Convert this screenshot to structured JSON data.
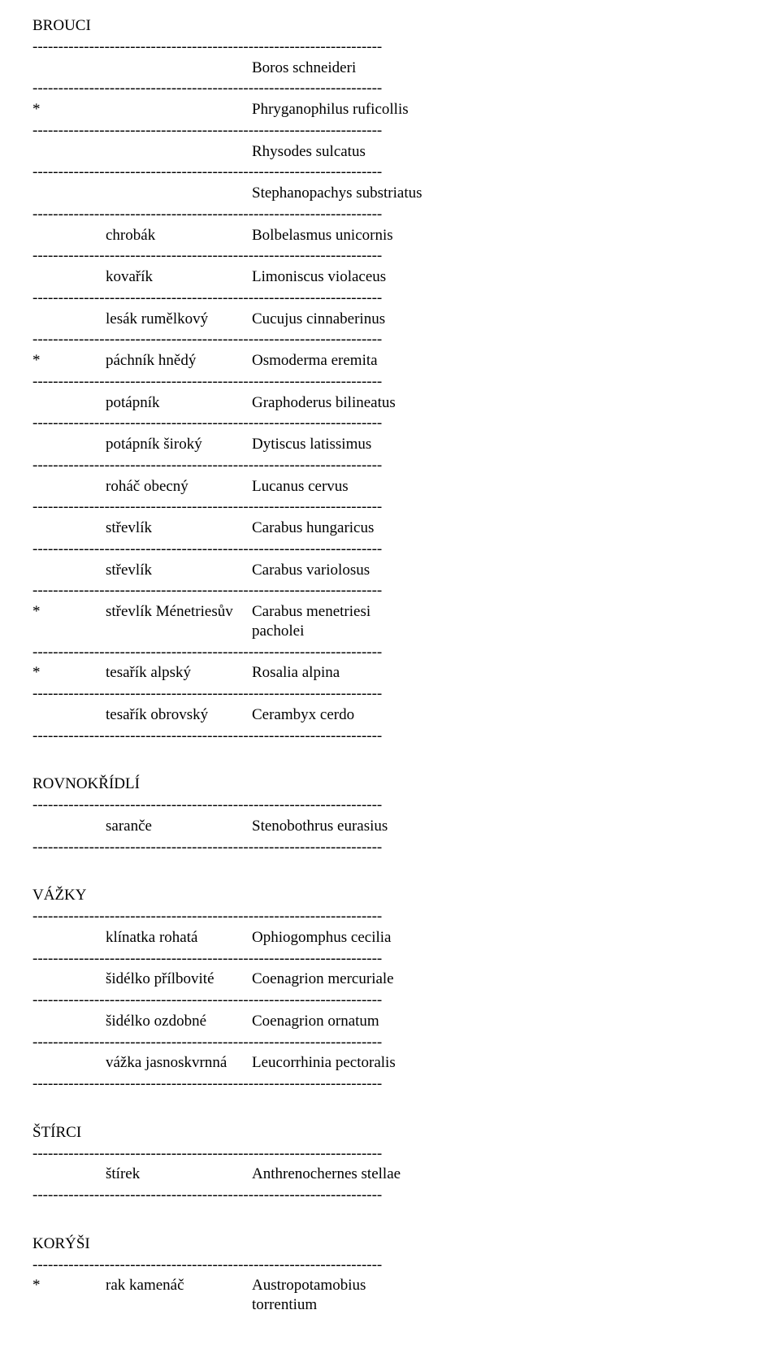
{
  "separator": "--------------------------------------------------------------------",
  "sections": {
    "brouci": {
      "title": "BROUCI",
      "items": [
        {
          "star": "",
          "common": "",
          "latin": "Boros schneideri"
        },
        {
          "star": "*",
          "common": "",
          "latin": "Phryganophilus ruficollis"
        },
        {
          "star": "",
          "common": "",
          "latin": "Rhysodes sulcatus"
        },
        {
          "star": "",
          "common": "",
          "latin": "Stephanopachys substriatus"
        },
        {
          "star": "",
          "common": "chrobák",
          "latin": "Bolbelasmus unicornis"
        },
        {
          "star": "",
          "common": "kovařík",
          "latin": "Limoniscus violaceus"
        },
        {
          "star": "",
          "common": "lesák rumělkový",
          "latin": "Cucujus cinnaberinus"
        },
        {
          "star": "*",
          "common": "páchník hnědý",
          "latin": "Osmoderma eremita"
        },
        {
          "star": "",
          "common": "potápník",
          "latin": "Graphoderus bilineatus"
        },
        {
          "star": "",
          "common": "potápník široký",
          "latin": "Dytiscus latissimus"
        },
        {
          "star": "",
          "common": "roháč obecný",
          "latin": "Lucanus cervus"
        },
        {
          "star": "",
          "common": "střevlík",
          "latin": "Carabus hungaricus"
        },
        {
          "star": "",
          "common": "střevlík",
          "latin": "Carabus variolosus"
        },
        {
          "star": "*",
          "common": "střevlík Ménetriesův",
          "latin": "Carabus menetriesi",
          "common2": "",
          "latin2": "pacholei"
        },
        {
          "star": "*",
          "common": "tesařík alpský",
          "latin": "Rosalia alpina"
        },
        {
          "star": "",
          "common": "tesařík obrovský",
          "latin": "Cerambyx cerdo"
        }
      ]
    },
    "rovnokridli": {
      "title": "ROVNOKŘÍDLÍ",
      "items": [
        {
          "star": "",
          "common": "saranče",
          "latin": "Stenobothrus eurasius"
        }
      ]
    },
    "vazky": {
      "title": "VÁŽKY",
      "items": [
        {
          "star": "",
          "common": "klínatka rohatá",
          "latin": "Ophiogomphus cecilia"
        },
        {
          "star": "",
          "common": "šidélko přílbovité",
          "latin": "Coenagrion mercuriale"
        },
        {
          "star": "",
          "common": "šidélko ozdobné",
          "latin": "Coenagrion ornatum"
        },
        {
          "star": "",
          "common": "vážka jasnoskvrnná",
          "latin": "Leucorrhinia pectoralis"
        }
      ]
    },
    "stirci": {
      "title": "ŠTÍRCI",
      "items": [
        {
          "star": "",
          "common": "štírek",
          "latin": "Anthrenochernes stellae"
        }
      ]
    },
    "korysi": {
      "title": "KORÝŠI",
      "items": [
        {
          "star": "*",
          "common": "rak kamenáč",
          "latin": "Austropotamobius",
          "latin2": "torrentium"
        }
      ]
    }
  }
}
